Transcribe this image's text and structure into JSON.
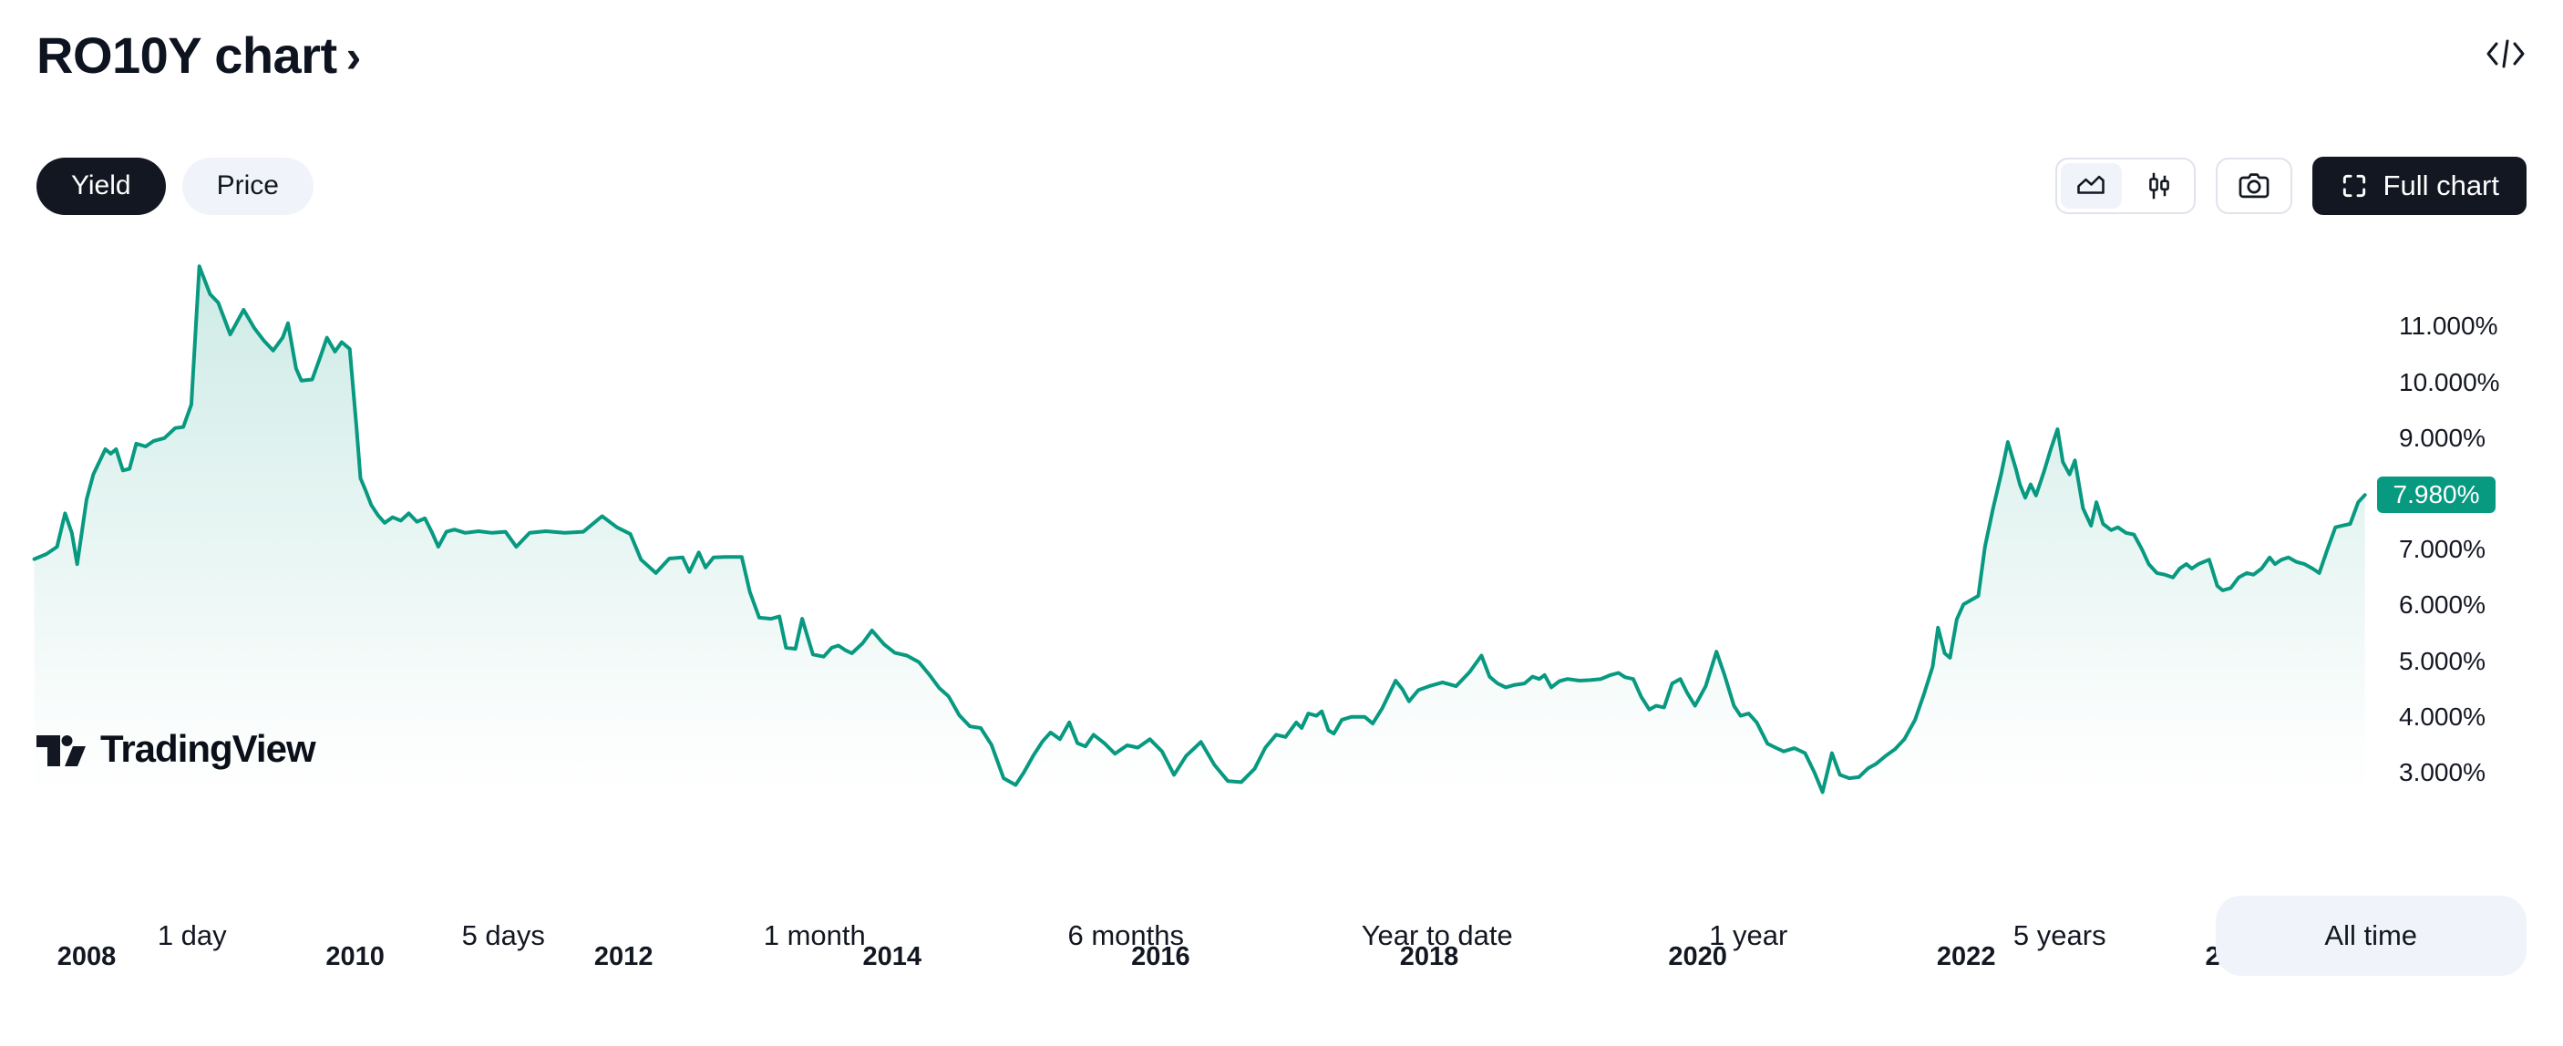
{
  "header": {
    "title": "RO10Y chart",
    "chevron": "›"
  },
  "toggle": {
    "items": [
      {
        "label": "Yield",
        "active": true
      },
      {
        "label": "Price",
        "active": false
      }
    ]
  },
  "toolbar": {
    "chart_styles": [
      {
        "name": "area-chart",
        "active": true
      },
      {
        "name": "candles",
        "active": false
      }
    ],
    "camera": "snapshot",
    "full_chart_label": "Full chart"
  },
  "logo": {
    "text": "TradingView"
  },
  "ranges": {
    "items": [
      "1 day",
      "5 days",
      "1 month",
      "6 months",
      "Year to date",
      "1 year",
      "5 years",
      "All time"
    ],
    "active": "All time"
  },
  "chart_data": {
    "type": "area",
    "ylabel": "Yield",
    "unit": "%",
    "grid": false,
    "legend_position": "none",
    "x_axis_years": [
      2008,
      2010,
      2012,
      2014,
      2016,
      2018,
      2020,
      2022,
      2024
    ],
    "y_ticks": [
      {
        "value": 11,
        "label": "11.000%"
      },
      {
        "value": 10,
        "label": "10.000%"
      },
      {
        "value": 9,
        "label": "9.000%"
      },
      {
        "value": 7,
        "label": "7.000%"
      },
      {
        "value": 6,
        "label": "6.000%"
      },
      {
        "value": 5,
        "label": "5.000%"
      },
      {
        "value": 4,
        "label": "4.000%"
      },
      {
        "value": 3,
        "label": "3.000%"
      }
    ],
    "ylim": [
      2.5,
      12.3
    ],
    "x_range": [
      2007.61,
      2024.97
    ],
    "current": {
      "value": 7.98,
      "label": "7.980%"
    },
    "colors": {
      "line": "#089981",
      "badge": "#089981",
      "fill_top": "rgba(8,153,129,0.20)",
      "fill_bottom": "rgba(8,153,129,0)"
    },
    "series": [
      {
        "name": "RO10Y Yield",
        "points": [
          [
            2007.61,
            6.83
          ],
          [
            2007.7,
            6.92
          ],
          [
            2007.78,
            7.05
          ],
          [
            2007.84,
            7.65
          ],
          [
            2007.89,
            7.3
          ],
          [
            2007.93,
            6.74
          ],
          [
            2008.0,
            7.9
          ],
          [
            2008.05,
            8.35
          ],
          [
            2008.1,
            8.6
          ],
          [
            2008.14,
            8.8
          ],
          [
            2008.18,
            8.72
          ],
          [
            2008.22,
            8.8
          ],
          [
            2008.27,
            8.42
          ],
          [
            2008.32,
            8.45
          ],
          [
            2008.37,
            8.9
          ],
          [
            2008.44,
            8.85
          ],
          [
            2008.5,
            8.95
          ],
          [
            2008.58,
            9.0
          ],
          [
            2008.66,
            9.18
          ],
          [
            2008.72,
            9.2
          ],
          [
            2008.78,
            9.6
          ],
          [
            2008.84,
            12.08
          ],
          [
            2008.92,
            11.58
          ],
          [
            2008.98,
            11.43
          ],
          [
            2009.07,
            10.86
          ],
          [
            2009.17,
            11.3
          ],
          [
            2009.25,
            10.97
          ],
          [
            2009.32,
            10.75
          ],
          [
            2009.39,
            10.57
          ],
          [
            2009.46,
            10.8
          ],
          [
            2009.5,
            11.06
          ],
          [
            2009.56,
            10.25
          ],
          [
            2009.6,
            10.03
          ],
          [
            2009.68,
            10.05
          ],
          [
            2009.74,
            10.45
          ],
          [
            2009.79,
            10.8
          ],
          [
            2009.85,
            10.55
          ],
          [
            2009.9,
            10.72
          ],
          [
            2009.96,
            10.6
          ],
          [
            2010.01,
            9.2
          ],
          [
            2010.04,
            8.28
          ],
          [
            2010.08,
            8.05
          ],
          [
            2010.12,
            7.8
          ],
          [
            2010.17,
            7.62
          ],
          [
            2010.22,
            7.48
          ],
          [
            2010.28,
            7.58
          ],
          [
            2010.34,
            7.52
          ],
          [
            2010.4,
            7.65
          ],
          [
            2010.46,
            7.5
          ],
          [
            2010.52,
            7.56
          ],
          [
            2010.57,
            7.32
          ],
          [
            2010.62,
            7.05
          ],
          [
            2010.68,
            7.32
          ],
          [
            2010.74,
            7.36
          ],
          [
            2010.82,
            7.3
          ],
          [
            2010.92,
            7.33
          ],
          [
            2011.02,
            7.3
          ],
          [
            2011.12,
            7.32
          ],
          [
            2011.2,
            7.05
          ],
          [
            2011.3,
            7.3
          ],
          [
            2011.42,
            7.33
          ],
          [
            2011.56,
            7.3
          ],
          [
            2011.7,
            7.32
          ],
          [
            2011.84,
            7.6
          ],
          [
            2011.95,
            7.4
          ],
          [
            2012.05,
            7.28
          ],
          [
            2012.13,
            6.82
          ],
          [
            2012.24,
            6.58
          ],
          [
            2012.34,
            6.84
          ],
          [
            2012.44,
            6.86
          ],
          [
            2012.49,
            6.6
          ],
          [
            2012.56,
            6.95
          ],
          [
            2012.61,
            6.68
          ],
          [
            2012.67,
            6.86
          ],
          [
            2012.76,
            6.87
          ],
          [
            2012.88,
            6.87
          ],
          [
            2012.94,
            6.24
          ],
          [
            2013.01,
            5.78
          ],
          [
            2013.1,
            5.76
          ],
          [
            2013.16,
            5.8
          ],
          [
            2013.21,
            5.24
          ],
          [
            2013.28,
            5.22
          ],
          [
            2013.33,
            5.76
          ],
          [
            2013.41,
            5.12
          ],
          [
            2013.49,
            5.08
          ],
          [
            2013.55,
            5.24
          ],
          [
            2013.6,
            5.28
          ],
          [
            2013.65,
            5.2
          ],
          [
            2013.7,
            5.14
          ],
          [
            2013.78,
            5.32
          ],
          [
            2013.85,
            5.55
          ],
          [
            2013.94,
            5.3
          ],
          [
            2014.02,
            5.15
          ],
          [
            2014.11,
            5.1
          ],
          [
            2014.2,
            4.98
          ],
          [
            2014.28,
            4.75
          ],
          [
            2014.35,
            4.52
          ],
          [
            2014.42,
            4.37
          ],
          [
            2014.5,
            4.03
          ],
          [
            2014.58,
            3.83
          ],
          [
            2014.66,
            3.8
          ],
          [
            2014.74,
            3.5
          ],
          [
            2014.83,
            2.9
          ],
          [
            2014.92,
            2.78
          ],
          [
            2014.98,
            3.0
          ],
          [
            2015.05,
            3.3
          ],
          [
            2015.12,
            3.56
          ],
          [
            2015.18,
            3.72
          ],
          [
            2015.25,
            3.6
          ],
          [
            2015.32,
            3.9
          ],
          [
            2015.38,
            3.53
          ],
          [
            2015.44,
            3.47
          ],
          [
            2015.5,
            3.68
          ],
          [
            2015.58,
            3.53
          ],
          [
            2015.66,
            3.34
          ],
          [
            2015.75,
            3.49
          ],
          [
            2015.83,
            3.45
          ],
          [
            2015.92,
            3.6
          ],
          [
            2016.01,
            3.38
          ],
          [
            2016.1,
            2.96
          ],
          [
            2016.19,
            3.3
          ],
          [
            2016.3,
            3.55
          ],
          [
            2016.4,
            3.14
          ],
          [
            2016.5,
            2.85
          ],
          [
            2016.6,
            2.83
          ],
          [
            2016.7,
            3.07
          ],
          [
            2016.78,
            3.45
          ],
          [
            2016.86,
            3.68
          ],
          [
            2016.93,
            3.64
          ],
          [
            2017.01,
            3.9
          ],
          [
            2017.05,
            3.8
          ],
          [
            2017.1,
            4.06
          ],
          [
            2017.16,
            4.02
          ],
          [
            2017.2,
            4.1
          ],
          [
            2017.25,
            3.76
          ],
          [
            2017.29,
            3.7
          ],
          [
            2017.35,
            3.95
          ],
          [
            2017.42,
            4.0
          ],
          [
            2017.52,
            4.0
          ],
          [
            2017.58,
            3.88
          ],
          [
            2017.65,
            4.15
          ],
          [
            2017.7,
            4.4
          ],
          [
            2017.75,
            4.65
          ],
          [
            2017.8,
            4.5
          ],
          [
            2017.85,
            4.28
          ],
          [
            2017.92,
            4.48
          ],
          [
            2018.0,
            4.55
          ],
          [
            2018.1,
            4.62
          ],
          [
            2018.2,
            4.55
          ],
          [
            2018.3,
            4.8
          ],
          [
            2018.39,
            5.1
          ],
          [
            2018.45,
            4.72
          ],
          [
            2018.51,
            4.6
          ],
          [
            2018.57,
            4.53
          ],
          [
            2018.63,
            4.57
          ],
          [
            2018.71,
            4.6
          ],
          [
            2018.77,
            4.72
          ],
          [
            2018.82,
            4.68
          ],
          [
            2018.86,
            4.75
          ],
          [
            2018.91,
            4.53
          ],
          [
            2018.97,
            4.64
          ],
          [
            2019.03,
            4.68
          ],
          [
            2019.12,
            4.65
          ],
          [
            2019.2,
            4.66
          ],
          [
            2019.28,
            4.68
          ],
          [
            2019.35,
            4.75
          ],
          [
            2019.41,
            4.79
          ],
          [
            2019.46,
            4.71
          ],
          [
            2019.52,
            4.68
          ],
          [
            2019.58,
            4.36
          ],
          [
            2019.64,
            4.13
          ],
          [
            2019.69,
            4.2
          ],
          [
            2019.75,
            4.17
          ],
          [
            2019.81,
            4.6
          ],
          [
            2019.87,
            4.68
          ],
          [
            2019.92,
            4.44
          ],
          [
            2019.98,
            4.2
          ],
          [
            2020.06,
            4.55
          ],
          [
            2020.14,
            5.17
          ],
          [
            2020.2,
            4.75
          ],
          [
            2020.27,
            4.2
          ],
          [
            2020.32,
            4.02
          ],
          [
            2020.38,
            4.06
          ],
          [
            2020.44,
            3.9
          ],
          [
            2020.52,
            3.52
          ],
          [
            2020.58,
            3.45
          ],
          [
            2020.64,
            3.38
          ],
          [
            2020.72,
            3.44
          ],
          [
            2020.8,
            3.35
          ],
          [
            2020.87,
            3.0
          ],
          [
            2020.93,
            2.65
          ],
          [
            2021.0,
            3.35
          ],
          [
            2021.06,
            2.96
          ],
          [
            2021.13,
            2.9
          ],
          [
            2021.2,
            2.92
          ],
          [
            2021.27,
            3.08
          ],
          [
            2021.33,
            3.16
          ],
          [
            2021.4,
            3.3
          ],
          [
            2021.47,
            3.42
          ],
          [
            2021.54,
            3.6
          ],
          [
            2021.62,
            3.95
          ],
          [
            2021.69,
            4.44
          ],
          [
            2021.75,
            4.9
          ],
          [
            2021.79,
            5.6
          ],
          [
            2021.84,
            5.14
          ],
          [
            2021.88,
            5.06
          ],
          [
            2021.93,
            5.75
          ],
          [
            2021.98,
            6.02
          ],
          [
            2022.04,
            6.1
          ],
          [
            2022.09,
            6.17
          ],
          [
            2022.14,
            7.05
          ],
          [
            2022.2,
            7.74
          ],
          [
            2022.26,
            8.35
          ],
          [
            2022.31,
            8.93
          ],
          [
            2022.37,
            8.45
          ],
          [
            2022.4,
            8.17
          ],
          [
            2022.44,
            7.93
          ],
          [
            2022.48,
            8.17
          ],
          [
            2022.52,
            7.97
          ],
          [
            2022.58,
            8.4
          ],
          [
            2022.63,
            8.8
          ],
          [
            2022.68,
            9.16
          ],
          [
            2022.72,
            8.57
          ],
          [
            2022.77,
            8.35
          ],
          [
            2022.81,
            8.6
          ],
          [
            2022.87,
            7.74
          ],
          [
            2022.93,
            7.43
          ],
          [
            2022.97,
            7.85
          ],
          [
            2023.02,
            7.46
          ],
          [
            2023.08,
            7.35
          ],
          [
            2023.13,
            7.4
          ],
          [
            2023.19,
            7.3
          ],
          [
            2023.25,
            7.27
          ],
          [
            2023.31,
            7.0
          ],
          [
            2023.36,
            6.74
          ],
          [
            2023.42,
            6.58
          ],
          [
            2023.48,
            6.55
          ],
          [
            2023.54,
            6.5
          ],
          [
            2023.59,
            6.66
          ],
          [
            2023.64,
            6.74
          ],
          [
            2023.68,
            6.66
          ],
          [
            2023.73,
            6.74
          ],
          [
            2023.81,
            6.82
          ],
          [
            2023.87,
            6.35
          ],
          [
            2023.91,
            6.27
          ],
          [
            2023.97,
            6.31
          ],
          [
            2024.03,
            6.5
          ],
          [
            2024.09,
            6.58
          ],
          [
            2024.14,
            6.55
          ],
          [
            2024.2,
            6.66
          ],
          [
            2024.26,
            6.86
          ],
          [
            2024.3,
            6.74
          ],
          [
            2024.35,
            6.82
          ],
          [
            2024.4,
            6.86
          ],
          [
            2024.46,
            6.78
          ],
          [
            2024.52,
            6.74
          ],
          [
            2024.58,
            6.66
          ],
          [
            2024.63,
            6.58
          ],
          [
            2024.69,
            7.0
          ],
          [
            2024.75,
            7.4
          ],
          [
            2024.8,
            7.43
          ],
          [
            2024.86,
            7.46
          ],
          [
            2024.92,
            7.85
          ],
          [
            2024.97,
            7.98
          ]
        ]
      }
    ]
  }
}
